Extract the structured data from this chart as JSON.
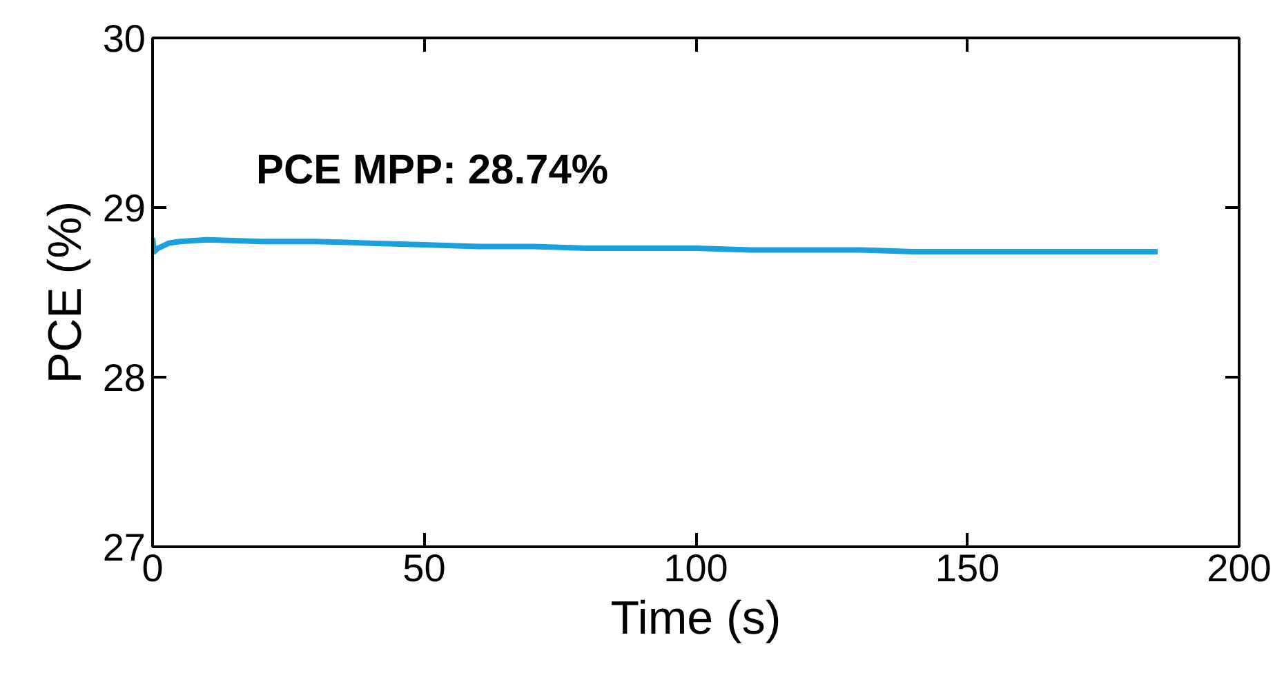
{
  "chart_data": {
    "type": "line",
    "xlabel": "Time (s)",
    "ylabel": "PCE (%)",
    "annotations": [
      "PCE MPP: 28.74%"
    ],
    "x": [
      0,
      0.3,
      1,
      3,
      5,
      10,
      20,
      30,
      40,
      50,
      60,
      70,
      80,
      90,
      100,
      110,
      120,
      130,
      140,
      150,
      160,
      170,
      185
    ],
    "series": [
      {
        "color": "#1a9fdf",
        "values": [
          28.82,
          28.74,
          28.76,
          28.79,
          28.8,
          28.81,
          28.8,
          28.8,
          28.79,
          28.78,
          28.77,
          28.77,
          28.76,
          28.76,
          28.76,
          28.75,
          28.75,
          28.75,
          28.74,
          28.74,
          28.74,
          28.74,
          28.74
        ]
      }
    ],
    "xlim": [
      0,
      200
    ],
    "ylim": [
      27,
      30
    ],
    "xticks": [
      0,
      50,
      100,
      150,
      200
    ],
    "yticks": [
      27,
      28,
      29,
      30
    ],
    "grid": false,
    "marker": "none",
    "line_style": "solid"
  }
}
